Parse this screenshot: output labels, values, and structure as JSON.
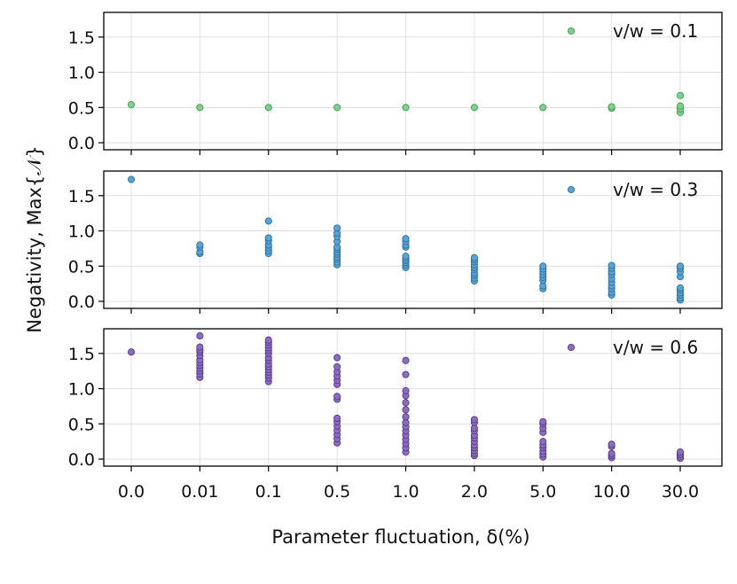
{
  "chart_data": {
    "type": "scatter",
    "xlabel": "Parameter fluctuation, δ(%)",
    "ylabel": "Negativity, Max{𝒩}",
    "categories": [
      "0.0",
      "0.01",
      "0.1",
      "0.5",
      "1.0",
      "2.0",
      "5.0",
      "10.0",
      "30.0"
    ],
    "ylim": [
      -0.1,
      1.85
    ],
    "yticks": [
      "0.0",
      "0.5",
      "1.0",
      "1.5"
    ],
    "grid": true,
    "legend_position": "top-right",
    "panels": [
      {
        "legend": "v/w = 0.1",
        "color": "#7fd18a",
        "edge": "#3f9a55",
        "points": [
          [
            0.54
          ],
          [
            0.5
          ],
          [
            0.5
          ],
          [
            0.5
          ],
          [
            0.5
          ],
          [
            0.5
          ],
          [
            0.5
          ],
          [
            0.49,
            0.51
          ],
          [
            0.43,
            0.48,
            0.52,
            0.67
          ]
        ]
      },
      {
        "legend": "v/w = 0.3",
        "color": "#5aa3d6",
        "edge": "#2b6f9e",
        "points": [
          [
            1.73
          ],
          [
            0.68,
            0.7,
            0.77,
            0.8
          ],
          [
            0.68,
            0.72,
            0.76,
            0.8,
            0.86,
            0.9,
            1.14
          ],
          [
            0.52,
            0.56,
            0.6,
            0.63,
            0.67,
            0.7,
            0.74,
            0.77,
            0.85,
            0.92,
            0.97,
            1.04
          ],
          [
            0.48,
            0.52,
            0.55,
            0.58,
            0.61,
            0.64,
            0.77,
            0.8,
            0.85,
            0.89
          ],
          [
            0.29,
            0.33,
            0.37,
            0.4,
            0.45,
            0.48,
            0.52,
            0.56,
            0.59,
            0.62
          ],
          [
            0.18,
            0.22,
            0.3,
            0.34,
            0.38,
            0.42,
            0.46,
            0.5
          ],
          [
            0.09,
            0.13,
            0.18,
            0.22,
            0.27,
            0.32,
            0.38,
            0.42,
            0.47,
            0.51
          ],
          [
            0.02,
            0.05,
            0.09,
            0.12,
            0.16,
            0.19,
            0.35,
            0.42,
            0.47,
            0.5
          ]
        ]
      },
      {
        "legend": "v/w = 0.6",
        "color": "#8a6cc0",
        "edge": "#553a8a",
        "points": [
          [
            1.52
          ],
          [
            1.16,
            1.21,
            1.25,
            1.29,
            1.33,
            1.37,
            1.41,
            1.47,
            1.52,
            1.55,
            1.59,
            1.75
          ],
          [
            1.1,
            1.15,
            1.19,
            1.23,
            1.27,
            1.31,
            1.35,
            1.4,
            1.44,
            1.5,
            1.54,
            1.58,
            1.62,
            1.66,
            1.69
          ],
          [
            0.23,
            0.29,
            0.35,
            0.41,
            0.47,
            0.53,
            0.58,
            0.85,
            0.89,
            1.06,
            1.12,
            1.18,
            1.24,
            1.31,
            1.44
          ],
          [
            0.1,
            0.16,
            0.22,
            0.28,
            0.34,
            0.4,
            0.46,
            0.52,
            0.6,
            0.7,
            0.8,
            0.9,
            0.97,
            1.2,
            1.4
          ],
          [
            0.05,
            0.08,
            0.12,
            0.16,
            0.2,
            0.25,
            0.3,
            0.34,
            0.4,
            0.44,
            0.52,
            0.56
          ],
          [
            0.03,
            0.07,
            0.11,
            0.16,
            0.2,
            0.25,
            0.38,
            0.44,
            0.5,
            0.53
          ],
          [
            0.02,
            0.05,
            0.08,
            0.18,
            0.21
          ],
          [
            0.01,
            0.04,
            0.07,
            0.1
          ]
        ]
      }
    ]
  }
}
